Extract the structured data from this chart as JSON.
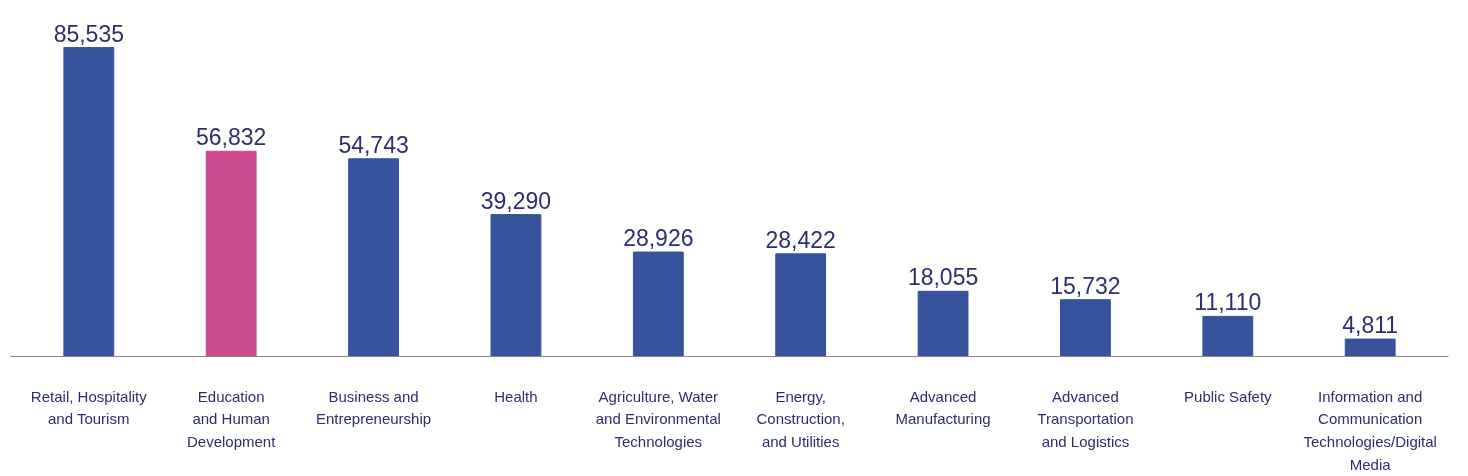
{
  "chart_data": {
    "type": "bar",
    "categories": [
      "Retail, Hospitality\nand Tourism",
      "Education\nand Human\nDevelopment",
      "Business and\nEntrepreneurship",
      "Health",
      "Agriculture, Water\nand Environmental\nTechnologies",
      "Energy,\nConstruction,\nand Utilities",
      "Advanced\nManufacturing",
      "Advanced\nTransportation\nand Logistics",
      "Public Safety",
      "Information and\nCommunication\nTechnologies/Digital\nMedia"
    ],
    "values": [
      85535,
      56832,
      54743,
      39290,
      28926,
      28422,
      18055,
      15732,
      11110,
      4811
    ],
    "colors": [
      "#36539c",
      "#c94a8f",
      "#36539c",
      "#36539c",
      "#36539c",
      "#36539c",
      "#36539c",
      "#36539c",
      "#36539c",
      "#36539c"
    ],
    "value_labels": [
      "85,535",
      "56,832",
      "54,743",
      "39,290",
      "28,926",
      "28,422",
      "18,055",
      "15,732",
      "11,110",
      "4,811"
    ],
    "grid": false
  }
}
